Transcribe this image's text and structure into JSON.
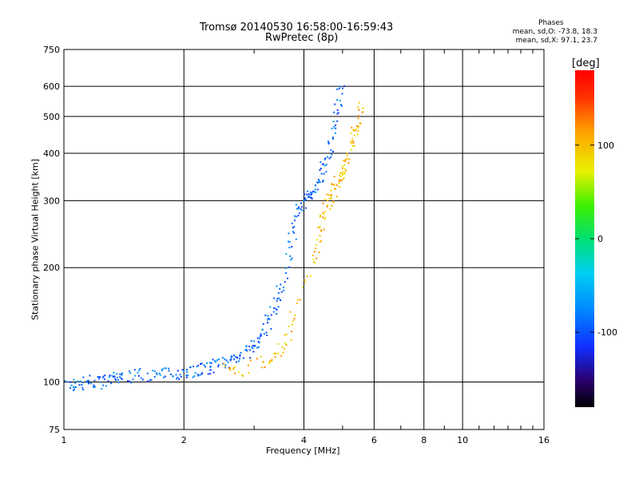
{
  "header": {
    "title_line1": "Tromsø 20140530 16:58:00-16:59:43",
    "title_line2": "RwPretec (8p)",
    "stats_heading": "Phases",
    "stats_o": "mean, sd,O: -73.8, 18.3",
    "stats_x": "mean, sd,X:  97.1, 23.7"
  },
  "colorbar": {
    "unit": "[deg]",
    "ticks": [
      "100",
      "0",
      "-100"
    ],
    "tick_values": [
      100,
      0,
      -100
    ],
    "range": [
      -180,
      180
    ]
  },
  "chart_data": {
    "type": "scatter",
    "xlabel": "Frequency [MHz]",
    "ylabel": "Stationary phase Virtual Height [km]",
    "xscale": "log",
    "yscale": "log",
    "xlim": [
      1,
      16
    ],
    "ylim": [
      75,
      750
    ],
    "x_ticks": [
      1,
      2,
      4,
      6,
      8,
      10,
      16
    ],
    "x_tick_labels": [
      "1",
      "2",
      "4",
      "6",
      "8",
      "10",
      "16"
    ],
    "y_ticks": [
      75,
      100,
      200,
      300,
      400,
      500,
      600,
      750
    ],
    "y_tick_labels": [
      "75",
      "100",
      "200",
      "300",
      "400",
      "500",
      "600",
      "750"
    ],
    "grid": true,
    "color_variable": "phase [deg]",
    "series": [
      {
        "note": "O-mode trace, phase near -90 deg",
        "color_phase": -90,
        "points": [
          [
            1.0,
            99
          ],
          [
            1.05,
            98
          ],
          [
            1.1,
            99
          ],
          [
            1.15,
            100
          ],
          [
            1.2,
            100
          ],
          [
            1.25,
            100
          ],
          [
            1.3,
            101
          ],
          [
            1.35,
            102
          ],
          [
            1.4,
            103
          ],
          [
            1.5,
            104
          ],
          [
            1.6,
            105
          ],
          [
            1.7,
            104
          ],
          [
            1.8,
            105
          ],
          [
            1.9,
            106
          ],
          [
            2.0,
            106
          ],
          [
            2.1,
            107
          ],
          [
            2.2,
            108
          ],
          [
            2.3,
            108
          ],
          [
            2.4,
            110
          ],
          [
            2.5,
            112
          ],
          [
            2.6,
            114
          ],
          [
            2.7,
            116
          ],
          [
            2.8,
            118
          ],
          [
            2.9,
            121
          ],
          [
            3.0,
            124
          ],
          [
            3.1,
            130
          ],
          [
            3.2,
            138
          ],
          [
            3.3,
            148
          ],
          [
            3.4,
            160
          ],
          [
            3.5,
            175
          ],
          [
            3.6,
            195
          ],
          [
            3.7,
            225
          ],
          [
            3.8,
            260
          ],
          [
            3.9,
            290
          ],
          [
            4.0,
            300
          ],
          [
            4.1,
            305
          ],
          [
            4.2,
            315
          ],
          [
            4.3,
            330
          ],
          [
            4.4,
            350
          ],
          [
            4.5,
            370
          ],
          [
            4.6,
            400
          ],
          [
            4.7,
            440
          ],
          [
            4.8,
            490
          ],
          [
            4.9,
            560
          ],
          [
            5.0,
            600
          ]
        ]
      },
      {
        "note": "X-mode trace, phase near +100 deg",
        "color_phase": 100,
        "points": [
          [
            2.55,
            108
          ],
          [
            2.7,
            106
          ],
          [
            3.1,
            112
          ],
          [
            3.3,
            114
          ],
          [
            3.5,
            122
          ],
          [
            3.65,
            132
          ],
          [
            3.8,
            155
          ],
          [
            4.2,
            205
          ],
          [
            4.3,
            230
          ],
          [
            4.4,
            255
          ],
          [
            4.5,
            280
          ],
          [
            4.6,
            300
          ],
          [
            4.7,
            310
          ],
          [
            4.8,
            325
          ],
          [
            4.9,
            340
          ],
          [
            5.0,
            355
          ],
          [
            5.1,
            375
          ],
          [
            5.2,
            400
          ],
          [
            5.3,
            440
          ],
          [
            5.4,
            470
          ],
          [
            5.5,
            500
          ],
          [
            5.6,
            540
          ]
        ]
      }
    ]
  }
}
